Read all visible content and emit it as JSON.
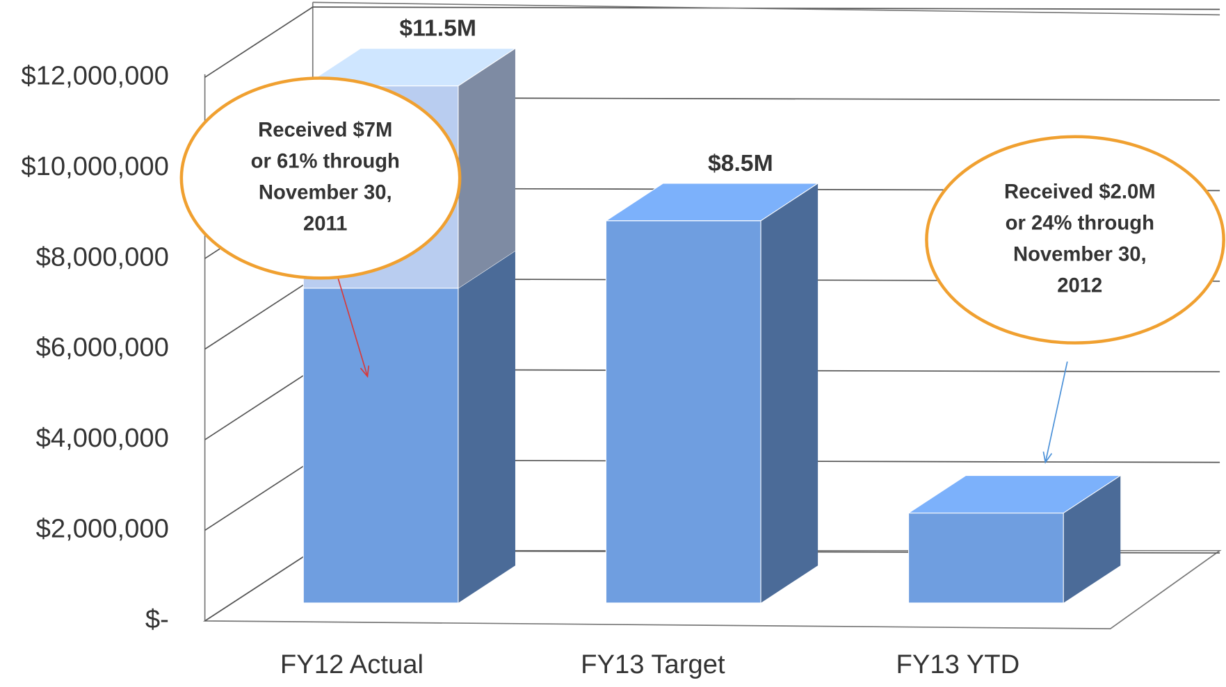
{
  "chart_data": {
    "type": "bar3d",
    "categories": [
      "FY12 Actual",
      "FY13 Target",
      "FY13 YTD"
    ],
    "series": [
      {
        "color": "#6f9ee0",
        "values": [
          7000000,
          8500000,
          2000000
        ]
      },
      {
        "color": "#b9cdf0",
        "values": [
          4500000,
          null,
          null
        ]
      }
    ],
    "totals": [
      11500000,
      8500000,
      null
    ],
    "total_labels": [
      "$11.5M",
      "$8.5M",
      null
    ],
    "ylim": [
      0,
      12000000
    ],
    "yticks": [
      {
        "value": 0,
        "label": "$-"
      },
      {
        "value": 2000000,
        "label": "$2,000,000"
      },
      {
        "value": 4000000,
        "label": "$4,000,000"
      },
      {
        "value": 6000000,
        "label": "$6,000,000"
      },
      {
        "value": 8000000,
        "label": "$8,000,000"
      },
      {
        "value": 10000000,
        "label": "$10,000,000"
      },
      {
        "value": 12000000,
        "label": "$12,000,000"
      }
    ],
    "grid": true,
    "annotations": [
      {
        "lines": [
          "Received $7M",
          "or 61% through",
          "November 30,",
          "2011"
        ],
        "color": "#f0a030",
        "arrow_color": "#d83a3a"
      },
      {
        "lines": [
          "Received $2.0M",
          "or 24% through",
          "November 30,",
          "2012"
        ],
        "color": "#f0a030",
        "arrow_color": "#4a90d8"
      }
    ]
  }
}
